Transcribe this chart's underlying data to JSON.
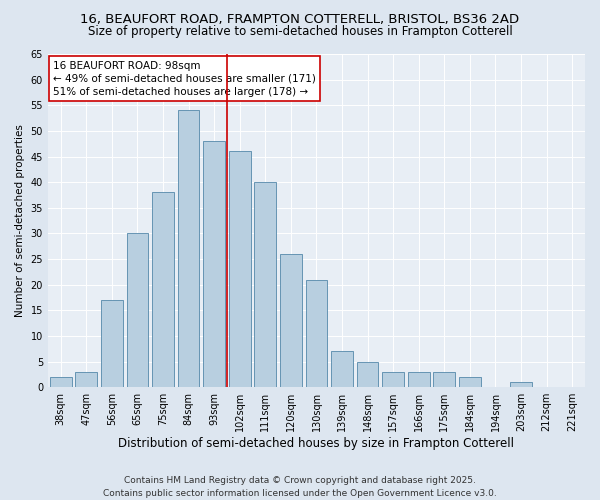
{
  "title1": "16, BEAUFORT ROAD, FRAMPTON COTTERELL, BRISTOL, BS36 2AD",
  "title2": "Size of property relative to semi-detached houses in Frampton Cotterell",
  "xlabel": "Distribution of semi-detached houses by size in Frampton Cotterell",
  "ylabel": "Number of semi-detached properties",
  "categories": [
    "38sqm",
    "47sqm",
    "56sqm",
    "65sqm",
    "75sqm",
    "84sqm",
    "93sqm",
    "102sqm",
    "111sqm",
    "120sqm",
    "130sqm",
    "139sqm",
    "148sqm",
    "157sqm",
    "166sqm",
    "175sqm",
    "184sqm",
    "194sqm",
    "203sqm",
    "212sqm",
    "221sqm"
  ],
  "values": [
    2,
    3,
    17,
    30,
    38,
    54,
    48,
    46,
    40,
    26,
    21,
    7,
    5,
    3,
    3,
    3,
    2,
    0,
    1,
    0,
    0
  ],
  "bar_color": "#b8cfe0",
  "bar_edgecolor": "#5588aa",
  "bar_linewidth": 0.6,
  "vline_color": "#cc0000",
  "vline_linewidth": 1.2,
  "annotation_text": "16 BEAUFORT ROAD: 98sqm\n← 49% of semi-detached houses are smaller (171)\n51% of semi-detached houses are larger (178) →",
  "annotation_box_edgecolor": "#cc0000",
  "annotation_box_facecolor": "white",
  "ylim": [
    0,
    65
  ],
  "yticks": [
    0,
    5,
    10,
    15,
    20,
    25,
    30,
    35,
    40,
    45,
    50,
    55,
    60,
    65
  ],
  "bg_color": "#dde6f0",
  "plot_bg_color": "#e8eef5",
  "grid_color": "#ffffff",
  "footnote": "Contains HM Land Registry data © Crown copyright and database right 2025.\nContains public sector information licensed under the Open Government Licence v3.0.",
  "title1_fontsize": 9.5,
  "title2_fontsize": 8.5,
  "xlabel_fontsize": 8.5,
  "ylabel_fontsize": 7.5,
  "tick_fontsize": 7,
  "annotation_fontsize": 7.5,
  "footnote_fontsize": 6.5
}
